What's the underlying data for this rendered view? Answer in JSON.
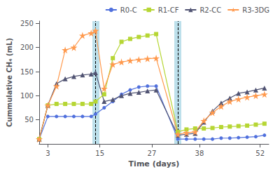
{
  "chart_data": {
    "type": "line",
    "xlabel": "Time (days)",
    "ylabel": "Cummulative CH₄ (mL)",
    "x": [
      1,
      3,
      5,
      7,
      9,
      11,
      13,
      14,
      16,
      18,
      20,
      22,
      24,
      26,
      28,
      33,
      35,
      37,
      39,
      41,
      43,
      45,
      47,
      49,
      51,
      53
    ],
    "series": [
      {
        "name": "R0-C",
        "marker": "circle",
        "values": [
          10,
          57,
          57,
          57,
          57,
          57,
          57,
          62,
          75,
          88,
          103,
          112,
          118,
          120,
          120,
          10,
          10,
          10,
          10,
          10,
          12,
          12,
          13,
          14,
          15,
          18
        ]
      },
      {
        "name": "R1-CF",
        "marker": "square",
        "values": [
          10,
          80,
          83,
          83,
          83,
          83,
          83,
          88,
          103,
          178,
          212,
          218,
          222,
          225,
          228,
          25,
          30,
          32,
          32,
          33,
          35,
          36,
          37,
          38,
          40,
          42
        ]
      },
      {
        "name": "R2-CC",
        "marker": "triangle",
        "values": [
          10,
          80,
          125,
          135,
          140,
          143,
          145,
          148,
          88,
          92,
          100,
          105,
          107,
          110,
          112,
          18,
          20,
          22,
          45,
          68,
          85,
          95,
          105,
          108,
          112,
          116
        ]
      },
      {
        "name": "R3-3DG",
        "marker": "star",
        "values": [
          10,
          80,
          120,
          195,
          200,
          225,
          230,
          235,
          115,
          165,
          170,
          173,
          175,
          177,
          178,
          20,
          23,
          25,
          48,
          65,
          78,
          88,
          93,
          97,
          100,
          103
        ]
      }
    ],
    "vlines": [
      14,
      33
    ],
    "xlim": [
      1,
      54
    ],
    "xticks": [
      3,
      15,
      27,
      38,
      52
    ],
    "ylim": [
      0,
      255
    ],
    "yticks": [
      50,
      100,
      150,
      200,
      250
    ],
    "legend": "upper right",
    "grid": false
  }
}
